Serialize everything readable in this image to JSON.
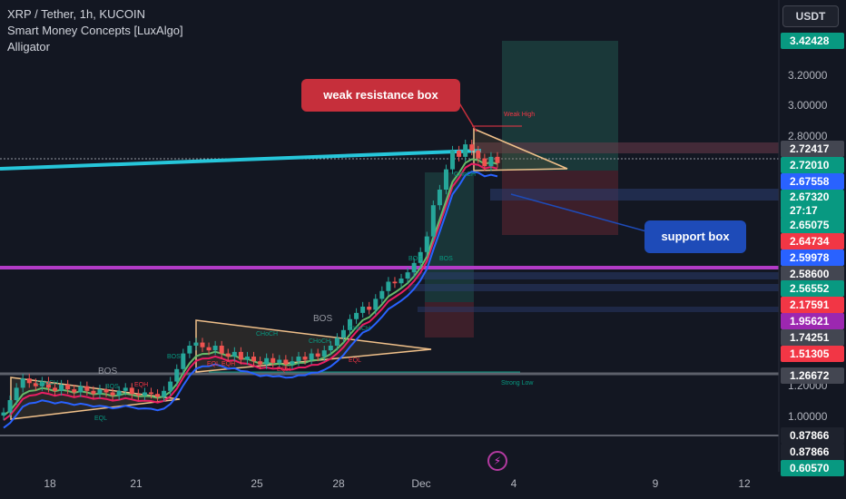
{
  "header": {
    "symbol": "XRP / Tether, 1h, KUCOIN",
    "indicator1": "Smart Money Concepts [LuxAlgo]",
    "indicator2": "Alligator"
  },
  "currency_button": "USDT",
  "callouts": {
    "resistance": "weak resistance box",
    "support": "support box"
  },
  "bolt_icon": "lightning-icon",
  "chart_data": {
    "type": "candlestick",
    "x_ticks": [
      "18",
      "21",
      "25",
      "28",
      "Dec",
      "4",
      "9",
      "12"
    ],
    "y_ticks": [
      "3.20000",
      "3.00000",
      "2.80000",
      "1.20000",
      "1.00000"
    ],
    "price_labels": [
      {
        "value": "3.42428",
        "color": "#089981"
      },
      {
        "value": "2.72417",
        "color": "#434651"
      },
      {
        "value": "2.72010",
        "color": "#089981"
      },
      {
        "value": "2.67558",
        "color": "#2962ff"
      },
      {
        "value": "2.67320\n27:17",
        "color": "#089981"
      },
      {
        "value": "2.65075",
        "color": "#089981"
      },
      {
        "value": "2.64734",
        "color": "#f23645"
      },
      {
        "value": "2.59978",
        "color": "#2962ff"
      },
      {
        "value": "2.58600",
        "color": "#434651"
      },
      {
        "value": "2.56552",
        "color": "#089981"
      },
      {
        "value": "2.17591",
        "color": "#f23645"
      },
      {
        "value": "1.95621",
        "color": "#9c27b0"
      },
      {
        "value": "1.74251",
        "color": "#434651"
      },
      {
        "value": "1.51305",
        "color": "#f23645"
      },
      {
        "value": "1.26672",
        "color": "#434651"
      },
      {
        "value": "0.87866",
        "color": "#1e222d"
      },
      {
        "value": "0.87866",
        "color": "#1e222d"
      },
      {
        "value": "0.60570",
        "color": "#089981"
      }
    ],
    "annotations": [
      "BOS",
      "BOS",
      "BOS",
      "BOS",
      "BOS",
      "BOS",
      "CHoCH",
      "CHoCH",
      "CHoCH",
      "CHoCH",
      "CHoCH",
      "EQL",
      "EQL",
      "EQL",
      "EQH",
      "EQH",
      "EQH",
      "Weak High",
      "Strong Low"
    ],
    "close_series": [
      1.02,
      1.1,
      1.18,
      1.24,
      1.21,
      1.19,
      1.22,
      1.18,
      1.16,
      1.2,
      1.17,
      1.15,
      1.19,
      1.16,
      1.14,
      1.17,
      1.15,
      1.13,
      1.16,
      1.18,
      1.14,
      1.13,
      1.15,
      1.14,
      1.12,
      1.16,
      1.22,
      1.3,
      1.4,
      1.45,
      1.47,
      1.44,
      1.42,
      1.45,
      1.4,
      1.38,
      1.41,
      1.36,
      1.38,
      1.35,
      1.33,
      1.37,
      1.34,
      1.36,
      1.33,
      1.35,
      1.38,
      1.36,
      1.4,
      1.38,
      1.42,
      1.45,
      1.5,
      1.55,
      1.62,
      1.66,
      1.7,
      1.68,
      1.75,
      1.8,
      1.86,
      1.85,
      1.88,
      1.92,
      1.98,
      2.05,
      2.15,
      2.35,
      2.45,
      2.58,
      2.7,
      2.66,
      2.74,
      2.7,
      2.65,
      2.6,
      2.66,
      2.62
    ]
  }
}
